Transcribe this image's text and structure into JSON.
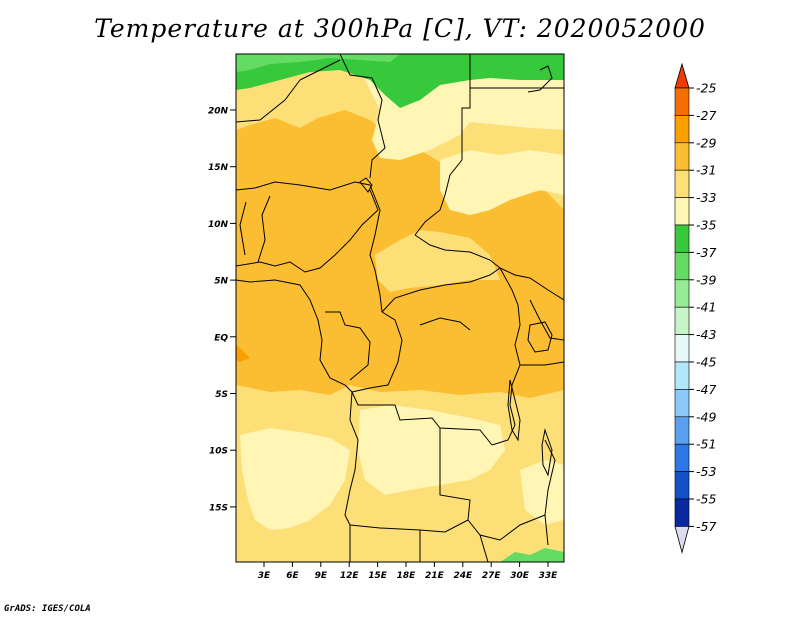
{
  "title": "Temperature at 300hPa [C], VT: 2020052000",
  "credit": "GrADS: IGES/COLA",
  "map": {
    "lat_ticks": [
      "20N",
      "15N",
      "10N",
      "5N",
      "EQ",
      "5S",
      "10S",
      "15S"
    ],
    "lon_ticks": [
      "3E",
      "6E",
      "9E",
      "12E",
      "15E",
      "18E",
      "21E",
      "24E",
      "27E",
      "30E",
      "33E"
    ]
  },
  "colorbar": {
    "labels": [
      "-25",
      "-27",
      "-29",
      "-31",
      "-33",
      "-35",
      "-37",
      "-39",
      "-41",
      "-43",
      "-45",
      "-47",
      "-49",
      "-51",
      "-53",
      "-55",
      "-57"
    ],
    "colors": [
      "#f03c00",
      "#f56e00",
      "#f9a000",
      "#fbbe32",
      "#fddf78",
      "#fff5b4",
      "#37c83c",
      "#64dc64",
      "#96eb96",
      "#c8f5c8",
      "#e6fafa",
      "#b4e6fa",
      "#8cc8fa",
      "#5aa0f0",
      "#2d78e6",
      "#1450c8",
      "#0a28a0",
      "#0a0a64"
    ],
    "top_triangle_color": "#f03c00",
    "bottom_triangle_color": "#dcdcf0"
  },
  "palette": {
    "orange": "#fbbe32",
    "light_orange": "#fddf78",
    "pale_yellow": "#fff5b4",
    "green": "#37c83c",
    "light_green": "#64dc64",
    "deep_orange": "#f9a000"
  }
}
